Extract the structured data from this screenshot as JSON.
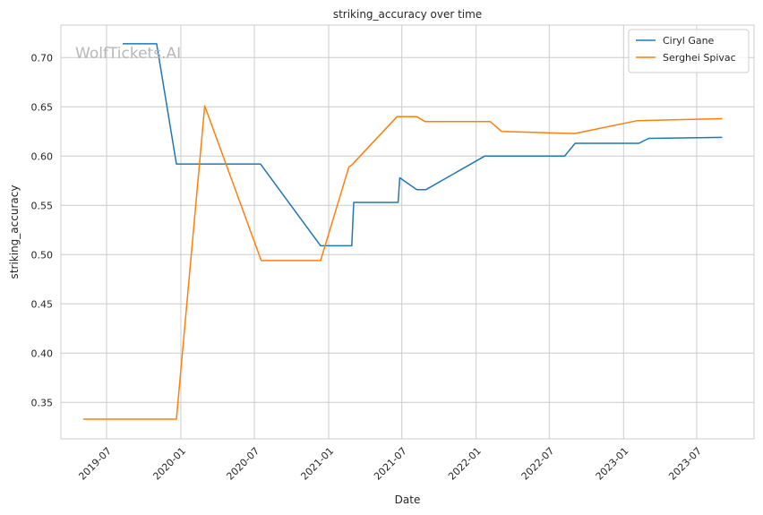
{
  "watermark": "WolfTickets.AI",
  "chart_data": {
    "type": "line",
    "title": "striking_accuracy over time",
    "xlabel": "Date",
    "ylabel": "striking_accuracy",
    "x_type": "date",
    "xlim": [
      "2019-03-10",
      "2023-11-20"
    ],
    "ylim": [
      0.313,
      0.733
    ],
    "x_ticks": [
      "2019-07",
      "2020-01",
      "2020-07",
      "2021-01",
      "2021-07",
      "2022-01",
      "2022-07",
      "2023-01",
      "2023-07"
    ],
    "y_ticks": [
      "0.35",
      "0.40",
      "0.45",
      "0.50",
      "0.55",
      "0.60",
      "0.65",
      "0.70"
    ],
    "grid": true,
    "legend_position": "top-right",
    "series": [
      {
        "name": "Ciryl Gane",
        "color": "#1f77b4",
        "points": [
          [
            "2019-08-10",
            0.714
          ],
          [
            "2019-11-02",
            0.714
          ],
          [
            "2019-12-21",
            0.592
          ],
          [
            "2020-07-16",
            0.592
          ],
          [
            "2020-12-12",
            0.509
          ],
          [
            "2021-02-27",
            0.509
          ],
          [
            "2021-03-04",
            0.553
          ],
          [
            "2021-06-22",
            0.553
          ],
          [
            "2021-06-26",
            0.578
          ],
          [
            "2021-08-07",
            0.566
          ],
          [
            "2021-08-30",
            0.566
          ],
          [
            "2022-01-22",
            0.6
          ],
          [
            "2022-08-08",
            0.6
          ],
          [
            "2022-09-03",
            0.613
          ],
          [
            "2023-02-08",
            0.613
          ],
          [
            "2023-03-04",
            0.618
          ],
          [
            "2023-09-02",
            0.619
          ]
        ]
      },
      {
        "name": "Serghei Spivac",
        "color": "#ff7f0e",
        "points": [
          [
            "2019-05-04",
            0.333
          ],
          [
            "2019-12-21",
            0.333
          ],
          [
            "2020-02-29",
            0.651
          ],
          [
            "2020-07-18",
            0.494
          ],
          [
            "2020-12-12",
            0.494
          ],
          [
            "2021-02-20",
            0.589
          ],
          [
            "2021-02-27",
            0.591
          ],
          [
            "2021-06-19",
            0.64
          ],
          [
            "2021-08-07",
            0.64
          ],
          [
            "2021-08-28",
            0.635
          ],
          [
            "2022-02-05",
            0.635
          ],
          [
            "2022-03-05",
            0.625
          ],
          [
            "2022-08-20",
            0.623
          ],
          [
            "2022-09-03",
            0.623
          ],
          [
            "2023-02-04",
            0.636
          ],
          [
            "2023-09-02",
            0.638
          ]
        ]
      }
    ]
  }
}
